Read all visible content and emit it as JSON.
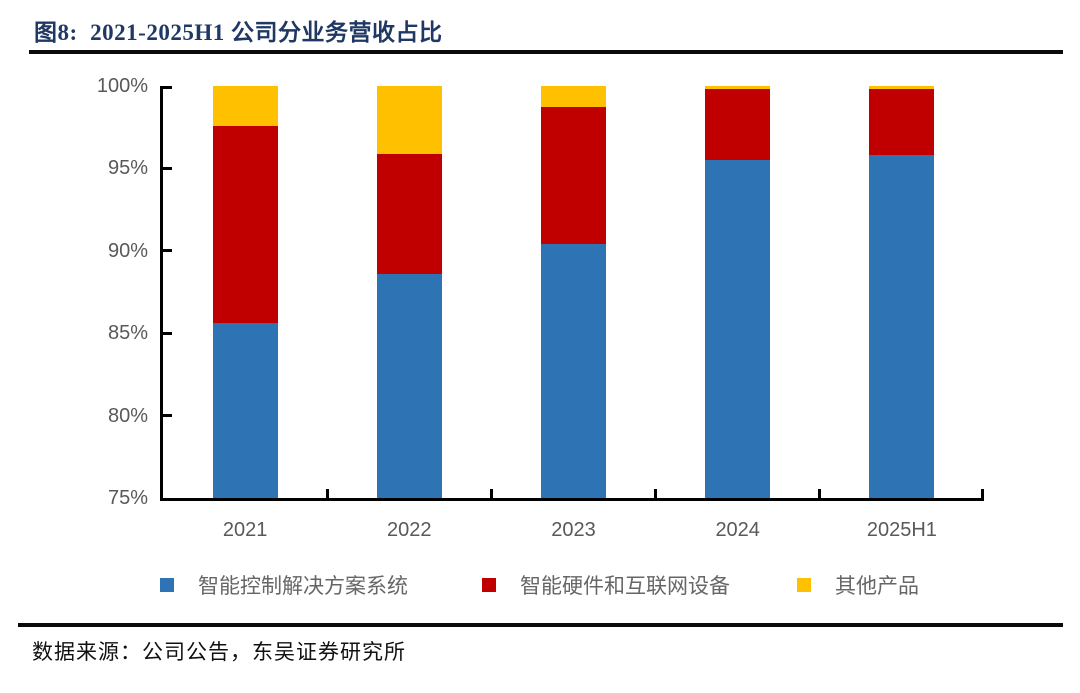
{
  "page": {
    "title": "图8:  2021-2025H1 公司分业务营收占比",
    "source": "数据来源：公司公告，东吴证券研究所"
  },
  "colors": {
    "title_navy": "#1F3864",
    "rule": "#0a0a0a",
    "axis": "#000000",
    "tick_label_gray": "#595959",
    "legend_label_gray": "#666666",
    "series_blue": "#2E74B5",
    "series_red": "#C00000",
    "series_yellow": "#FFC000"
  },
  "chart_data": {
    "type": "bar",
    "subtype": "stacked-100-percent",
    "title": "图8:  2021-2025H1 公司分业务营收占比",
    "categories": [
      "2021",
      "2022",
      "2023",
      "2024",
      "2025H1"
    ],
    "series": [
      {
        "name": "智能控制解决方案系统",
        "color": "#2E74B5",
        "values": [
          85.6,
          88.6,
          90.4,
          95.5,
          95.8
        ]
      },
      {
        "name": "智能硬件和互联网设备",
        "color": "#C00000",
        "values": [
          12.0,
          7.3,
          8.3,
          4.3,
          4.0
        ]
      },
      {
        "name": "其他产品",
        "color": "#FFC000",
        "values": [
          2.4,
          4.1,
          1.3,
          0.2,
          0.2
        ]
      }
    ],
    "unit": "%",
    "xlabel": "",
    "ylabel": "",
    "ylim": [
      75,
      100
    ],
    "yticks": [
      {
        "value": 75,
        "label": "75%"
      },
      {
        "value": 80,
        "label": "80%"
      },
      {
        "value": 85,
        "label": "85%"
      },
      {
        "value": 90,
        "label": "90%"
      },
      {
        "value": 95,
        "label": "95%"
      },
      {
        "value": 100,
        "label": "100%"
      }
    ],
    "grid": false,
    "legend_position": "bottom"
  }
}
